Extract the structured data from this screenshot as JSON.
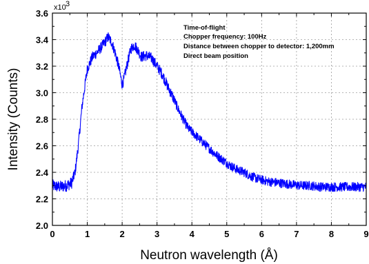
{
  "chart_data": {
    "type": "line",
    "xlabel": "Neutron wavelength (Å)",
    "ylabel": "Intensity (Counts)",
    "y_multiplier_base": "x10",
    "y_multiplier_exp": "3",
    "xlim": [
      0,
      9
    ],
    "ylim": [
      2.0,
      3.6
    ],
    "x_ticks": [
      "0",
      "1",
      "2",
      "3",
      "4",
      "5",
      "6",
      "7",
      "8",
      "9"
    ],
    "y_ticks": [
      "2.0",
      "2.2",
      "2.4",
      "2.6",
      "2.8",
      "3.0",
      "3.2",
      "3.4",
      "3.6"
    ],
    "grid": true,
    "annotations": [
      "Time-of-flight",
      "Chopper frequency: 100Hz",
      "Distance between chopper to detector: 1,200mm",
      "Direct beam position"
    ],
    "series": [
      {
        "color": "#0000ff",
        "x": [
          0.0,
          0.2,
          0.4,
          0.55,
          0.65,
          0.75,
          0.85,
          1.0,
          1.15,
          1.3,
          1.45,
          1.6,
          1.7,
          1.8,
          1.9,
          2.0,
          2.05,
          2.15,
          2.25,
          2.35,
          2.45,
          2.55,
          2.7,
          2.85,
          3.0,
          3.15,
          3.3,
          3.45,
          3.6,
          3.75,
          3.9,
          4.1,
          4.3,
          4.5,
          4.7,
          4.9,
          5.1,
          5.3,
          5.5,
          5.7,
          5.9,
          6.2,
          6.5,
          6.8,
          7.1,
          7.4,
          7.7,
          8.0,
          8.3,
          8.6,
          9.0
        ],
        "y": [
          2.3,
          2.29,
          2.3,
          2.32,
          2.4,
          2.62,
          2.9,
          3.18,
          3.27,
          3.31,
          3.36,
          3.42,
          3.38,
          3.3,
          3.2,
          3.06,
          3.1,
          3.22,
          3.33,
          3.36,
          3.32,
          3.27,
          3.28,
          3.26,
          3.2,
          3.14,
          3.05,
          2.97,
          2.88,
          2.8,
          2.73,
          2.68,
          2.63,
          2.58,
          2.53,
          2.49,
          2.45,
          2.42,
          2.4,
          2.37,
          2.35,
          2.33,
          2.32,
          2.31,
          2.3,
          2.3,
          2.29,
          2.29,
          2.29,
          2.29,
          2.29
        ]
      }
    ]
  }
}
